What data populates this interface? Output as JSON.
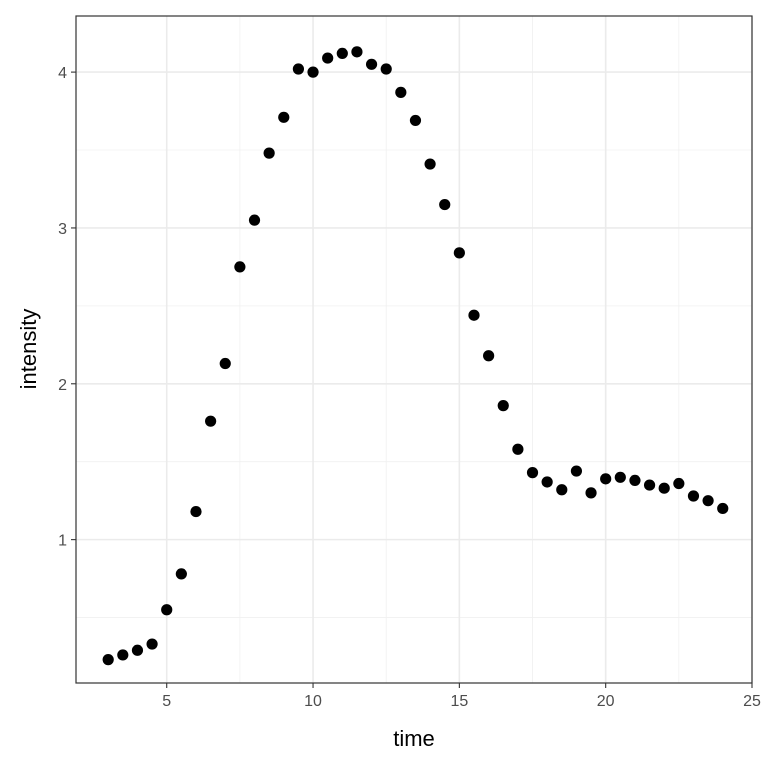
{
  "chart_data": {
    "type": "scatter",
    "title": "",
    "xlabel": "time",
    "ylabel": "intensity",
    "xlim": [
      1.9,
      25.0
    ],
    "ylim": [
      0.08,
      4.36
    ],
    "x_ticks": [
      5,
      10,
      15,
      20,
      25
    ],
    "x_minor": [
      7.5,
      12.5,
      17.5,
      22.5
    ],
    "y_ticks": [
      1,
      2,
      3,
      4
    ],
    "y_minor": [
      0.5,
      1.5,
      2.5,
      3.5
    ],
    "grid": true,
    "legend": "none",
    "point_color": "#000000",
    "series": [
      {
        "x": [
          3.0,
          3.5,
          4.0,
          4.5,
          5.0,
          5.5,
          6.0,
          6.5,
          7.0,
          7.5,
          8.0,
          8.5,
          9.0,
          9.5,
          10.0,
          10.5,
          11.0,
          11.5,
          12.0,
          12.5,
          13.0,
          13.5,
          14.0,
          14.5,
          15.0,
          15.5,
          16.0,
          16.5,
          17.0,
          17.5,
          18.0,
          18.5,
          19.0,
          19.5,
          20.0,
          20.5,
          21.0,
          21.5,
          22.0,
          22.5,
          23.0,
          23.5,
          24.0
        ],
        "y": [
          0.23,
          0.26,
          0.29,
          0.33,
          0.55,
          0.78,
          1.18,
          1.76,
          2.13,
          2.75,
          3.05,
          3.48,
          3.71,
          4.02,
          4.0,
          4.09,
          4.12,
          4.13,
          4.05,
          4.02,
          3.87,
          3.69,
          3.41,
          3.15,
          2.84,
          2.44,
          2.18,
          1.86,
          1.58,
          1.43,
          1.37,
          1.32,
          1.44,
          1.3,
          1.39,
          1.4,
          1.38,
          1.35,
          1.33,
          1.36,
          1.28,
          1.25,
          1.2
        ]
      }
    ]
  }
}
